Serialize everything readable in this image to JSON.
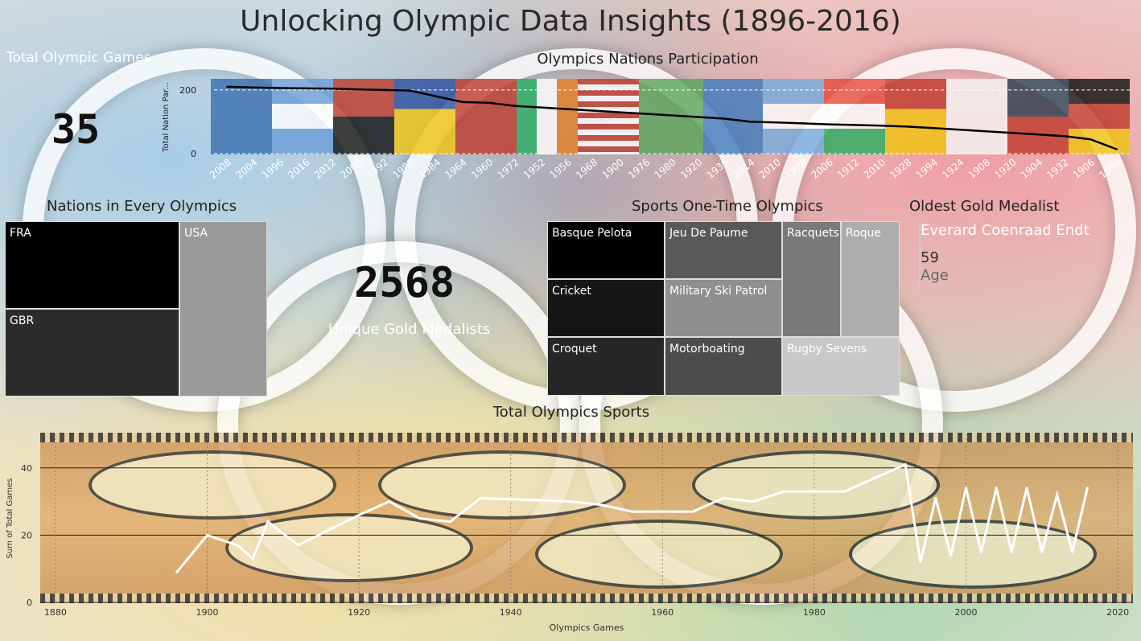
{
  "page_title": "Unlocking Olympic Data  Insights (1896-2016)",
  "total_games": {
    "label": "Total Olympic Games",
    "value": "35"
  },
  "unique_gold": {
    "label": "Unique Gold Medalists",
    "value": "2568"
  },
  "nations_every": {
    "title": "Nations in Every Olympics",
    "items": [
      {
        "label": "FRA",
        "color": "#000000"
      },
      {
        "label": "GBR",
        "color": "#2b2b2b"
      },
      {
        "label": "USA",
        "color": "#999999"
      }
    ]
  },
  "one_time_sports": {
    "title": "Sports One-Time Olympics",
    "items": [
      {
        "label": "Basque Pelota",
        "color": "#000000"
      },
      {
        "label": "Jeu De Paume",
        "color": "#595959"
      },
      {
        "label": "Racquets",
        "color": "#7a7a7a"
      },
      {
        "label": "Roque",
        "color": "#adadad"
      },
      {
        "label": "Cricket",
        "color": "#161616"
      },
      {
        "label": "Military Ski Patrol",
        "color": "#8f8f8f"
      },
      {
        "label": "Croquet",
        "color": "#262626"
      },
      {
        "label": "Motorboating",
        "color": "#4d4d4d"
      },
      {
        "label": "Rugby Sevens",
        "color": "#c8c8c8"
      }
    ]
  },
  "oldest_gold": {
    "title": "Oldest Gold Medalist",
    "name": "Everard Coenraad Endt",
    "age_value": "59",
    "age_label": "Age"
  },
  "colors": {
    "line_dark": "#000000",
    "line_light": "#ffffff"
  },
  "chart_data": [
    {
      "type": "line",
      "title": "Olympics Nations Participation",
      "xlabel": "",
      "ylabel": "Total Nation Par...",
      "categories": [
        "2008",
        "2004",
        "1996",
        "2016",
        "2012",
        "2000",
        "1992",
        "1988",
        "1984",
        "1964",
        "1960",
        "1972",
        "1952",
        "1956",
        "1968",
        "1900",
        "1976",
        "1980",
        "1920",
        "1936",
        "2014",
        "2010",
        "1998",
        "2006",
        "1912",
        "2010",
        "1928",
        "1994",
        "1924",
        "1908",
        "1920",
        "1904",
        "1932",
        "1906",
        "1896"
      ],
      "values": [
        210,
        208,
        206,
        205,
        204,
        202,
        200,
        198,
        180,
        162,
        160,
        150,
        145,
        140,
        135,
        130,
        125,
        120,
        115,
        110,
        100,
        98,
        95,
        92,
        90,
        88,
        85,
        80,
        75,
        70,
        65,
        60,
        55,
        45,
        14
      ],
      "yticks": [
        0,
        200
      ],
      "ylim": [
        0,
        230
      ]
    },
    {
      "type": "line",
      "title": "Total Olympics Sports",
      "xlabel": "Olympics Games",
      "ylabel": "Sum of Total Games",
      "x": [
        1896,
        1900,
        1904,
        1906,
        1908,
        1912,
        1920,
        1924,
        1928,
        1932,
        1936,
        1948,
        1952,
        1956,
        1960,
        1964,
        1968,
        1972,
        1976,
        1980,
        1984,
        1988,
        1992,
        1994,
        1996,
        1998,
        2000,
        2002,
        2004,
        2006,
        2008,
        2010,
        2012,
        2014,
        2016
      ],
      "values": [
        9,
        20,
        17,
        13,
        24,
        17,
        26,
        30,
        25,
        24,
        31,
        30,
        29,
        27,
        27,
        27,
        31,
        30,
        33,
        33,
        33,
        37,
        41,
        12,
        31,
        14,
        34,
        15,
        34,
        15,
        34,
        15,
        32,
        15,
        34
      ],
      "xticks": [
        1880,
        1900,
        1920,
        1940,
        1960,
        1980,
        2000,
        2020
      ],
      "yticks": [
        0,
        20,
        40
      ],
      "xlim": [
        1878,
        2022
      ],
      "ylim": [
        0,
        50
      ]
    }
  ]
}
